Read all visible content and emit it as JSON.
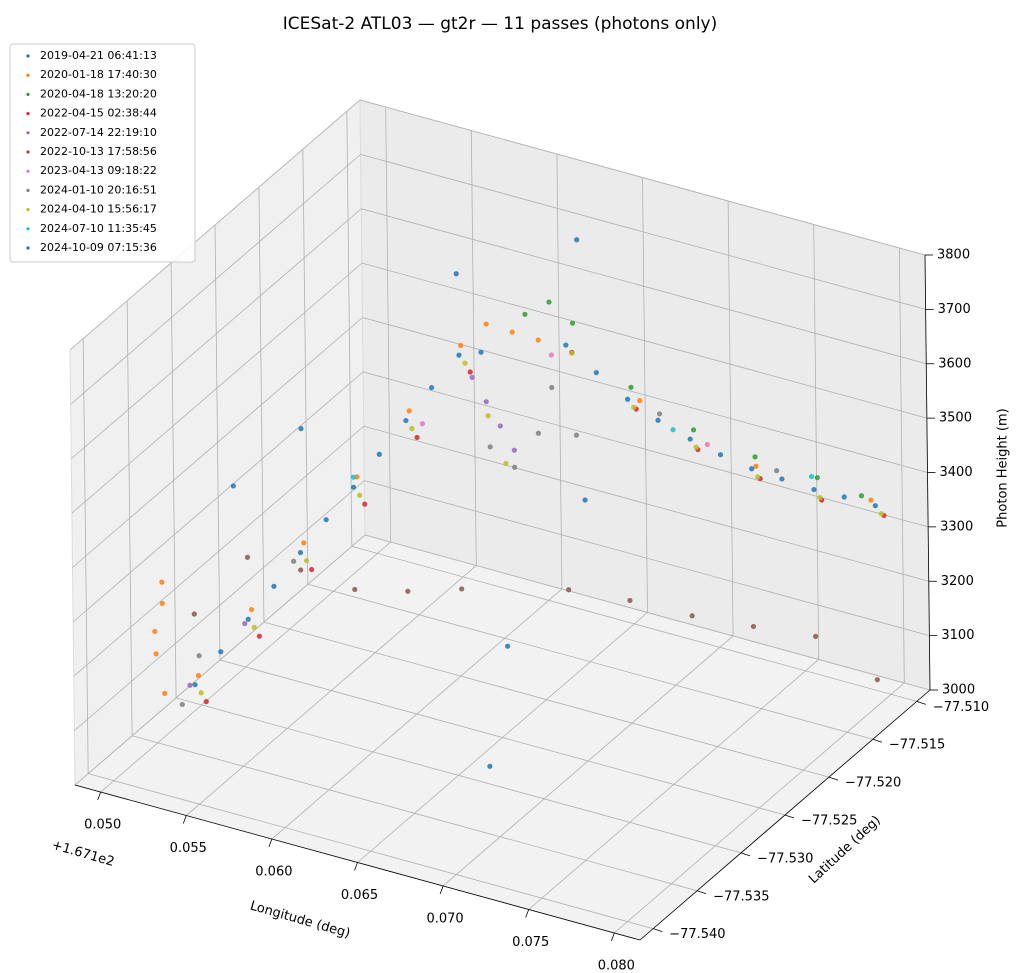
{
  "chart_data": {
    "type": "scatter3d",
    "title": "ICESat-2 ATL03 — gt2r — 11 passes (photons only)",
    "xlabel": "Longitude (deg)",
    "ylabel": "Latitude (deg)",
    "zlabel": "Photon Height (m)",
    "x_offset_label": "+1.671e2",
    "xlim": [
      167.1485,
      167.1815
    ],
    "ylim": [
      -77.5415,
      -77.5085
    ],
    "zlim": [
      3000,
      3800
    ],
    "xticks": [
      {
        "value": 167.15,
        "label": "0.050"
      },
      {
        "value": 167.155,
        "label": "0.055"
      },
      {
        "value": 167.16,
        "label": "0.060"
      },
      {
        "value": 167.165,
        "label": "0.065"
      },
      {
        "value": 167.17,
        "label": "0.070"
      },
      {
        "value": 167.175,
        "label": "0.075"
      },
      {
        "value": 167.18,
        "label": "0.080"
      }
    ],
    "yticks": [
      {
        "value": -77.54,
        "label": "−77.540"
      },
      {
        "value": -77.535,
        "label": "−77.535"
      },
      {
        "value": -77.53,
        "label": "−77.530"
      },
      {
        "value": -77.525,
        "label": "−77.525"
      },
      {
        "value": -77.52,
        "label": "−77.520"
      },
      {
        "value": -77.515,
        "label": "−77.515"
      },
      {
        "value": -77.51,
        "label": "−77.510"
      }
    ],
    "zticks": [
      3000,
      3100,
      3200,
      3300,
      3400,
      3500,
      3600,
      3700,
      3800
    ],
    "grid": true,
    "legend": "upper left",
    "series": [
      {
        "name": "2019-04-21 06:41:13",
        "color": "#1f77b4",
        "x": [
          167.165,
          167.16,
          167.156,
          167.17,
          167.164,
          167.169,
          167.152,
          167.171
        ],
        "y": [
          -77.516,
          -77.52,
          -77.53,
          -77.525,
          -77.525,
          -77.532,
          -77.53,
          -77.538
        ],
        "z": [
          3790,
          3740,
          3560,
          3480,
          3700,
          3300,
          3420,
          3180
        ]
      },
      {
        "name": "2020-01-18 17:40:30",
        "color": "#ff7f0e",
        "x": [
          167.1512,
          167.1515,
          167.1518,
          167.151,
          167.152,
          167.153,
          167.1547,
          167.1563,
          167.158,
          167.1596,
          167.1612,
          167.1625,
          167.1635,
          167.1645,
          167.169,
          167.174,
          167.179
        ],
        "y": [
          -77.5375,
          -77.5372,
          -77.5378,
          -77.537,
          -77.538,
          -77.5361,
          -77.5333,
          -77.5304,
          -77.5276,
          -77.5247,
          -77.5219,
          -77.5215,
          -77.5205,
          -77.5195,
          -77.5168,
          -77.5134,
          -77.5101
        ],
        "z": [
          3250,
          3300,
          3350,
          3200,
          3150,
          3165,
          3262,
          3358,
          3455,
          3550,
          3645,
          3690,
          3670,
          3650,
          3540,
          3415,
          3350
        ]
      },
      {
        "name": "2020-04-18 13:20:20",
        "color": "#2ca02c",
        "x": [
          167.164,
          167.165,
          167.166,
          167.1685,
          167.1712,
          167.1739,
          167.1766,
          167.1785
        ],
        "y": [
          -77.52,
          -77.5192,
          -77.5185,
          -77.5168,
          -77.515,
          -77.5133,
          -77.5115,
          -77.5102
        ],
        "z": [
          3700,
          3720,
          3680,
          3560,
          3480,
          3430,
          3390,
          3355
        ]
      },
      {
        "name": "2022-04-15 02:38:44",
        "color": "#d62728",
        "x": [
          167.1537,
          167.1554,
          167.157,
          167.1587,
          167.1603,
          167.162,
          167.1662,
          167.169,
          167.1717,
          167.1744,
          167.1771,
          167.1798
        ],
        "y": [
          -77.5366,
          -77.5338,
          -77.5309,
          -77.5281,
          -77.5252,
          -77.5224,
          -77.519,
          -77.5172,
          -77.5155,
          -77.5137,
          -77.512,
          -77.5102
        ],
        "z": [
          3130,
          3226,
          3322,
          3418,
          3514,
          3610,
          3635,
          3530,
          3455,
          3400,
          3360,
          3330
        ]
      },
      {
        "name": "2022-07-14 22:19:10",
        "color": "#9467bd",
        "x": [
          167.1527,
          167.1545,
          167.1618,
          167.1624,
          167.163,
          167.1636
        ],
        "y": [
          -77.5365,
          -77.5337,
          -77.5218,
          -77.5214,
          -77.521,
          -77.5206
        ],
        "z": [
          3150,
          3240,
          3590,
          3545,
          3500,
          3455
        ]
      },
      {
        "name": "2022-10-13 17:58:56",
        "color": "#8c564b",
        "x": [
          167.1529,
          167.1546,
          167.1562,
          167.1579,
          167.1595,
          167.1612,
          167.1657,
          167.1684,
          167.1711,
          167.1738,
          167.1765,
          167.1792
        ],
        "y": [
          -77.5363,
          -77.5335,
          -77.5306,
          -77.5278,
          -77.5249,
          -77.5221,
          -77.5187,
          -77.517,
          -77.5152,
          -77.5135,
          -77.5117,
          -77.51
        ],
        "z": [
          3280,
          3360,
          3310,
          3250,
          3220,
          3200,
          3190,
          3170,
          3140,
          3120,
          3100,
          3020
        ]
      },
      {
        "name": "2023-04-13 09:18:22",
        "color": "#e377c2",
        "x": [
          167.16,
          167.165,
          167.172
        ],
        "y": [
          -77.524,
          -77.519,
          -77.515
        ],
        "z": [
          3520,
          3620,
          3460
        ]
      },
      {
        "name": "2024-01-10 20:16:51",
        "color": "#7f7f7f",
        "x": [
          167.1525,
          167.153,
          167.156,
          167.1625,
          167.1635,
          167.1645,
          167.165,
          167.166,
          167.17,
          167.175
        ],
        "y": [
          -77.537,
          -77.536,
          -77.531,
          -77.5212,
          -77.5204,
          -77.5196,
          -77.519,
          -77.5182,
          -77.5165,
          -77.513
        ],
        "z": [
          3120,
          3200,
          3330,
          3460,
          3420,
          3480,
          3560,
          3470,
          3520,
          3410
        ]
      },
      {
        "name": "2024-04-10 15:56:17",
        "color": "#bcbd22",
        "x": [
          167.1533,
          167.155,
          167.1566,
          167.1583,
          167.1599,
          167.1616,
          167.1625,
          167.1632,
          167.1661,
          167.1688,
          167.1715,
          167.1742,
          167.1769,
          167.1796
        ],
        "y": [
          -77.5364,
          -77.5336,
          -77.5307,
          -77.5279,
          -77.525,
          -77.5222,
          -77.5214,
          -77.5208,
          -77.5188,
          -77.5171,
          -77.5153,
          -77.5136,
          -77.5118,
          -77.5101
        ],
        "z": [
          3140,
          3236,
          3332,
          3428,
          3524,
          3620,
          3520,
          3430,
          3630,
          3530,
          3455,
          3400,
          3360,
          3330
        ]
      },
      {
        "name": "2024-07-10 11:35:45",
        "color": "#17becf",
        "x": [
          167.158,
          167.17,
          167.176
        ],
        "y": [
          -77.528,
          -77.515,
          -77.511
        ],
        "z": [
          3460,
          3470,
          3380
        ]
      },
      {
        "name": "2024-10-09 07:15:36",
        "color": "#1f77b4",
        "x": [
          167.1529,
          167.1537,
          167.1546,
          167.1554,
          167.1562,
          167.157,
          167.1579,
          167.1587,
          167.1595,
          167.1603,
          167.1612,
          167.1657,
          167.167,
          167.1684,
          167.1697,
          167.1711,
          167.1724,
          167.1738,
          167.1751,
          167.1765,
          167.1778,
          167.1792
        ],
        "y": [
          -77.5363,
          -77.5349,
          -77.5335,
          -77.5321,
          -77.5306,
          -77.5292,
          -77.5278,
          -77.5264,
          -77.5249,
          -77.5235,
          -77.5221,
          -77.5187,
          -77.5178,
          -77.517,
          -77.5161,
          -77.5152,
          -77.5143,
          -77.5135,
          -77.5126,
          -77.5117,
          -77.5108,
          -77.51
        ],
        "z": [
          3150,
          3198,
          3246,
          3294,
          3342,
          3390,
          3438,
          3486,
          3534,
          3582,
          3630,
          3640,
          3588,
          3540,
          3500,
          3465,
          3435,
          3410,
          3390,
          3370,
          3355,
          3340
        ]
      }
    ]
  }
}
